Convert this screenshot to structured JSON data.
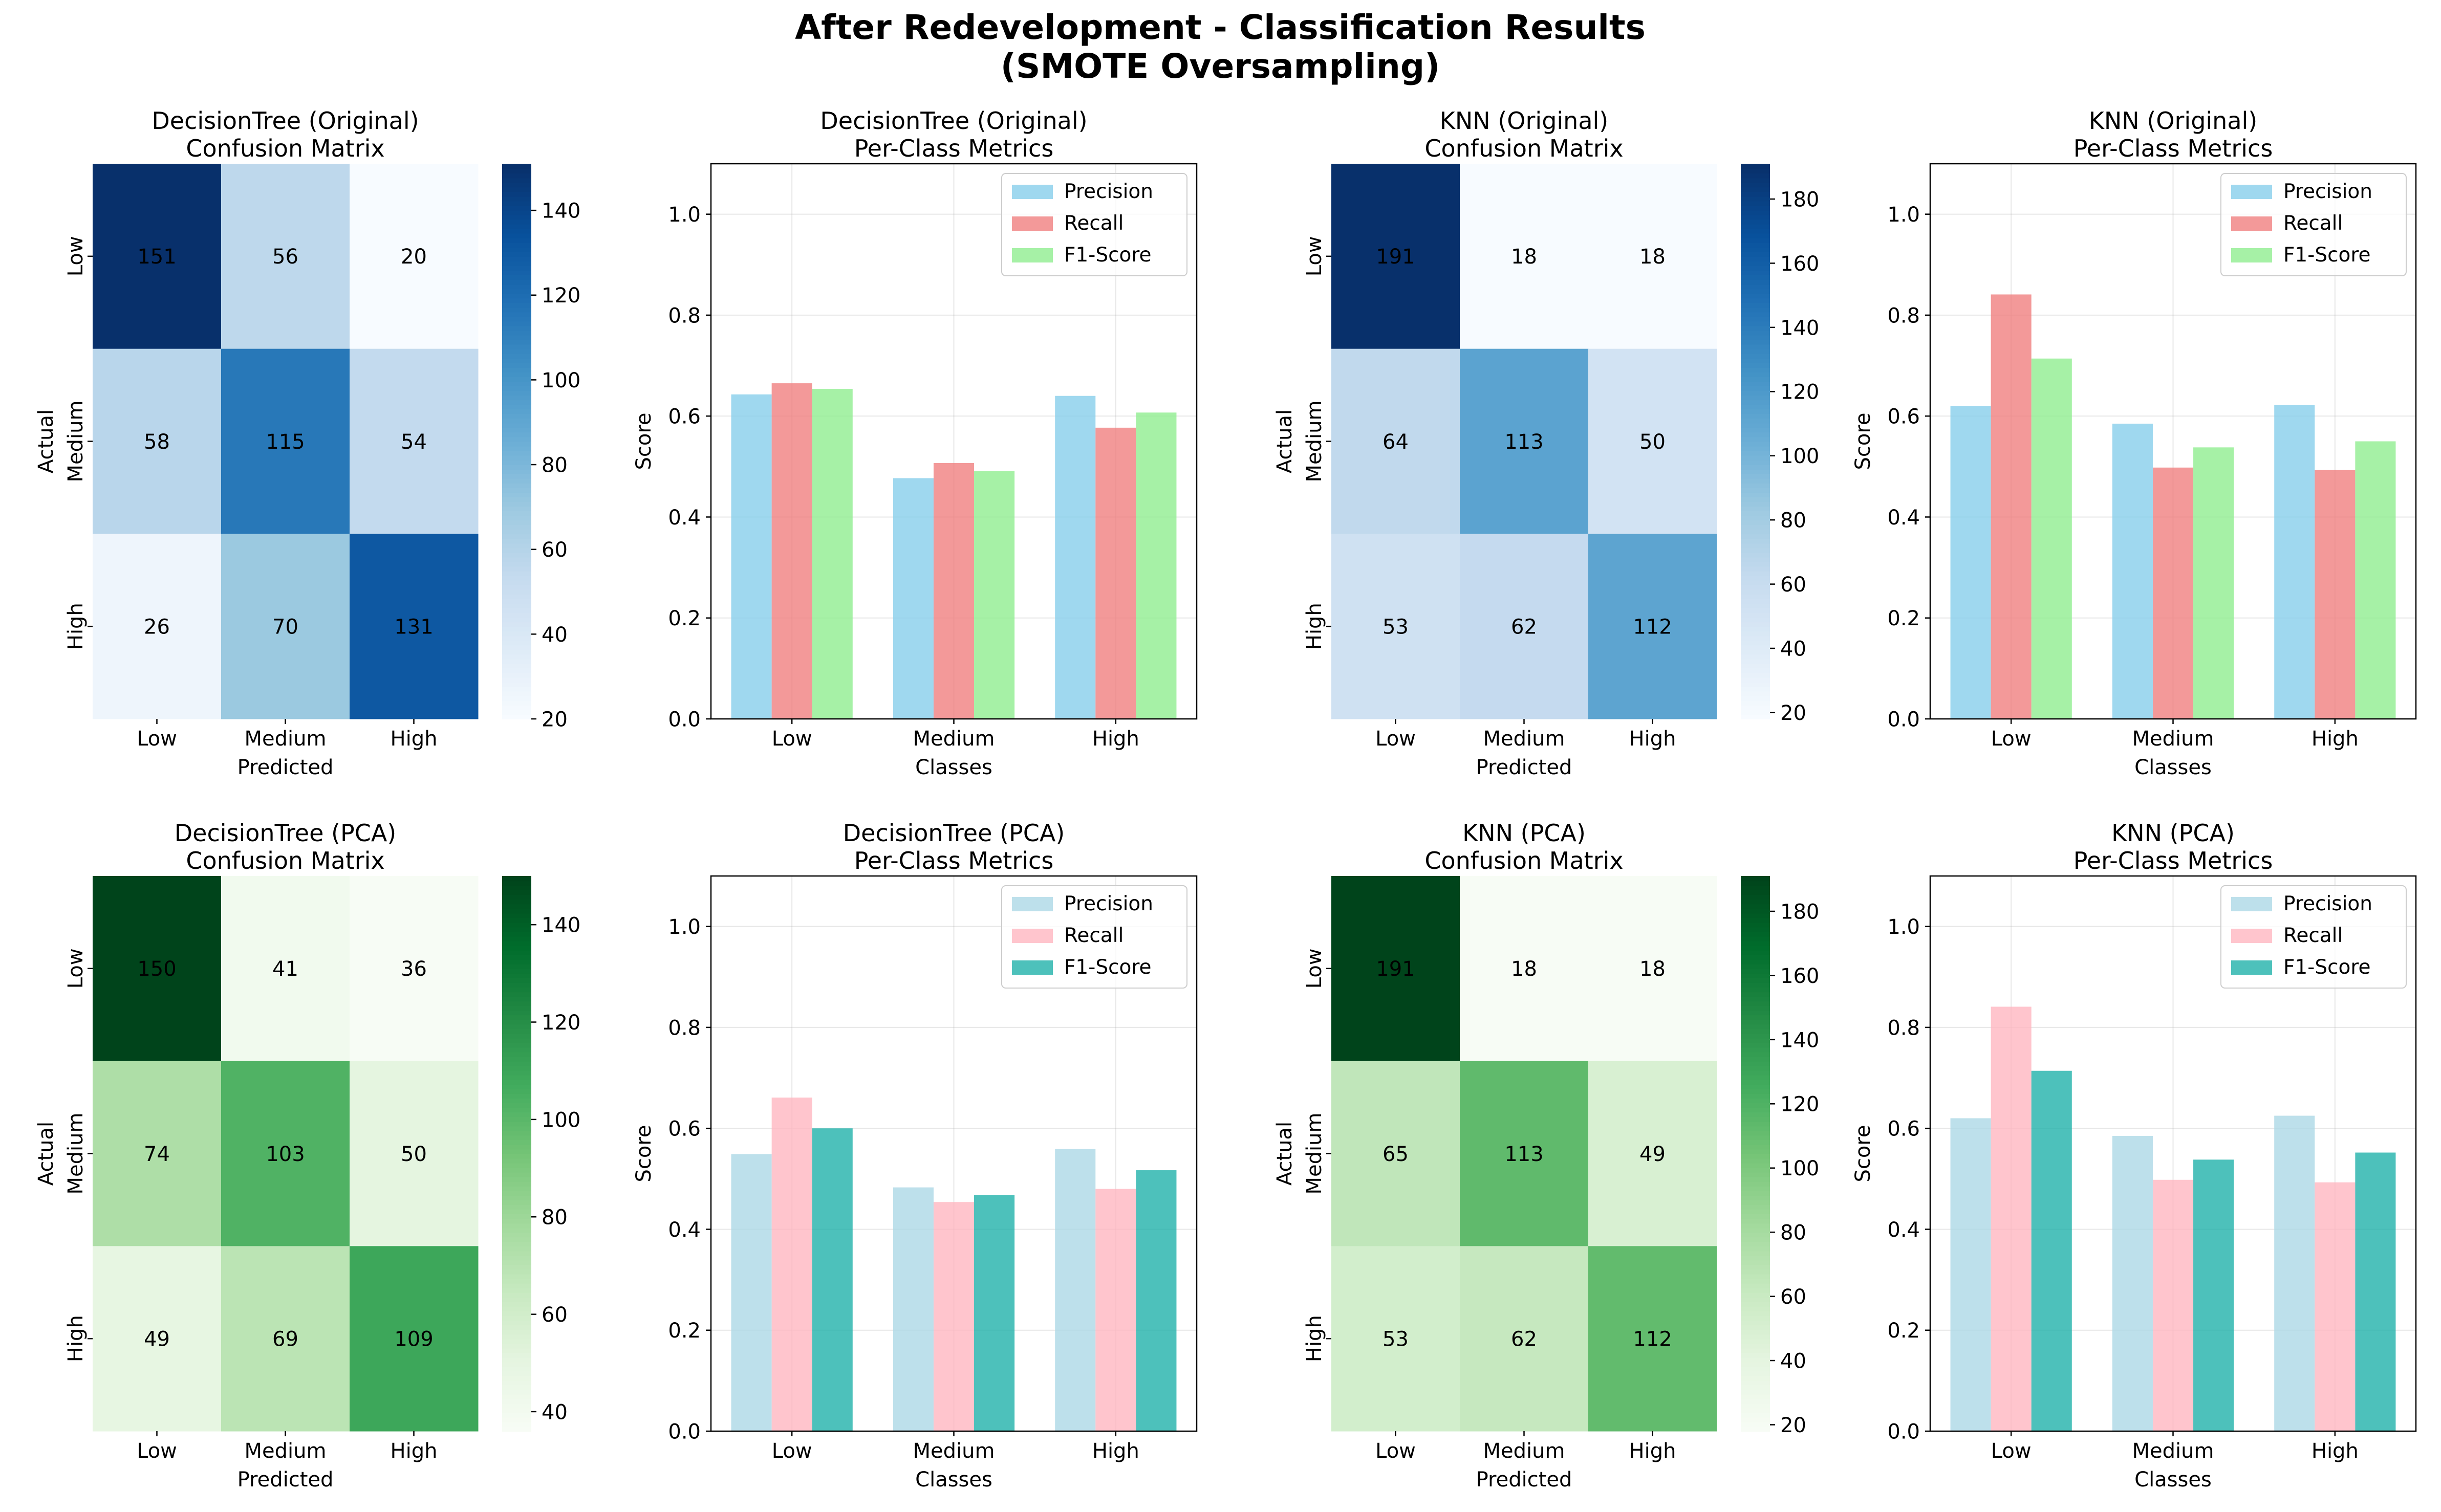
{
  "figure": {
    "title_line1": "After Redevelopment - Classification Results",
    "title_line2": "(SMOTE Oversampling)"
  },
  "chart_data": [
    {
      "type": "heatmap",
      "title": "DecisionTree (Original)",
      "subtitle": "Confusion Matrix",
      "xlabel": "Predicted",
      "ylabel": "Actual",
      "x_categories": [
        "Low",
        "Medium",
        "High"
      ],
      "y_categories": [
        "Low",
        "Medium",
        "High"
      ],
      "matrix": [
        [
          151,
          56,
          20
        ],
        [
          58,
          115,
          54
        ],
        [
          26,
          70,
          131
        ]
      ],
      "colormap": "Blues",
      "color_range": [
        20,
        151
      ],
      "colorbar_ticks": [
        20,
        40,
        60,
        80,
        100,
        120,
        140
      ]
    },
    {
      "type": "bar",
      "title": "DecisionTree (Original)",
      "subtitle": "Per-Class Metrics",
      "xlabel": "Classes",
      "ylabel": "Score",
      "categories": [
        "Low",
        "Medium",
        "High"
      ],
      "ylim": [
        0,
        1.1
      ],
      "yticks": [
        "0.0",
        "0.2",
        "0.4",
        "0.6",
        "0.8",
        "1.0"
      ],
      "grid": true,
      "legend_position": "top-right",
      "series": [
        {
          "name": "Precision",
          "values": [
            0.643,
            0.477,
            0.64
          ],
          "color": "#87ceeb"
        },
        {
          "name": "Recall",
          "values": [
            0.665,
            0.507,
            0.577
          ],
          "color": "#f08080"
        },
        {
          "name": "F1-Score",
          "values": [
            0.654,
            0.491,
            0.607
          ],
          "color": "#90ee90"
        }
      ]
    },
    {
      "type": "heatmap",
      "title": "KNN (Original)",
      "subtitle": "Confusion Matrix",
      "xlabel": "Predicted",
      "ylabel": "Actual",
      "x_categories": [
        "Low",
        "Medium",
        "High"
      ],
      "y_categories": [
        "Low",
        "Medium",
        "High"
      ],
      "matrix": [
        [
          191,
          18,
          18
        ],
        [
          64,
          113,
          50
        ],
        [
          53,
          62,
          112
        ]
      ],
      "colormap": "Blues",
      "color_range": [
        18,
        191
      ],
      "colorbar_ticks": [
        20,
        40,
        60,
        80,
        100,
        120,
        140,
        160,
        180
      ]
    },
    {
      "type": "bar",
      "title": "KNN (Original)",
      "subtitle": "Per-Class Metrics",
      "xlabel": "Classes",
      "ylabel": "Score",
      "categories": [
        "Low",
        "Medium",
        "High"
      ],
      "ylim": [
        0,
        1.1
      ],
      "yticks": [
        "0.0",
        "0.2",
        "0.4",
        "0.6",
        "0.8",
        "1.0"
      ],
      "grid": true,
      "legend_position": "top-right",
      "series": [
        {
          "name": "Precision",
          "values": [
            0.62,
            0.585,
            0.622
          ],
          "color": "#87ceeb"
        },
        {
          "name": "Recall",
          "values": [
            0.841,
            0.498,
            0.493
          ],
          "color": "#f08080"
        },
        {
          "name": "F1-Score",
          "values": [
            0.714,
            0.538,
            0.55
          ],
          "color": "#90ee90"
        }
      ]
    },
    {
      "type": "heatmap",
      "title": "DecisionTree (PCA)",
      "subtitle": "Confusion Matrix",
      "xlabel": "Predicted",
      "ylabel": "Actual",
      "x_categories": [
        "Low",
        "Medium",
        "High"
      ],
      "y_categories": [
        "Low",
        "Medium",
        "High"
      ],
      "matrix": [
        [
          150,
          41,
          36
        ],
        [
          74,
          103,
          50
        ],
        [
          49,
          69,
          109
        ]
      ],
      "colormap": "Greens",
      "color_range": [
        36,
        150
      ],
      "colorbar_ticks": [
        40,
        60,
        80,
        100,
        120,
        140
      ]
    },
    {
      "type": "bar",
      "title": "DecisionTree (PCA)",
      "subtitle": "Per-Class Metrics",
      "xlabel": "Classes",
      "ylabel": "Score",
      "categories": [
        "Low",
        "Medium",
        "High"
      ],
      "ylim": [
        0,
        1.1
      ],
      "yticks": [
        "0.0",
        "0.2",
        "0.4",
        "0.6",
        "0.8",
        "1.0"
      ],
      "grid": true,
      "legend_position": "top-right",
      "series": [
        {
          "name": "Precision",
          "values": [
            0.549,
            0.483,
            0.559
          ],
          "color": "#add8e6"
        },
        {
          "name": "Recall",
          "values": [
            0.661,
            0.454,
            0.48
          ],
          "color": "#ffb6c1"
        },
        {
          "name": "F1-Score",
          "values": [
            0.6,
            0.468,
            0.517
          ],
          "color": "#20b2aa"
        }
      ]
    },
    {
      "type": "heatmap",
      "title": "KNN (PCA)",
      "subtitle": "Confusion Matrix",
      "xlabel": "Predicted",
      "ylabel": "Actual",
      "x_categories": [
        "Low",
        "Medium",
        "High"
      ],
      "y_categories": [
        "Low",
        "Medium",
        "High"
      ],
      "matrix": [
        [
          191,
          18,
          18
        ],
        [
          65,
          113,
          49
        ],
        [
          53,
          62,
          112
        ]
      ],
      "colormap": "Greens",
      "color_range": [
        18,
        191
      ],
      "colorbar_ticks": [
        20,
        40,
        60,
        80,
        100,
        120,
        140,
        160,
        180
      ]
    },
    {
      "type": "bar",
      "title": "KNN (PCA)",
      "subtitle": "Per-Class Metrics",
      "xlabel": "Classes",
      "ylabel": "Score",
      "categories": [
        "Low",
        "Medium",
        "High"
      ],
      "ylim": [
        0,
        1.1
      ],
      "yticks": [
        "0.0",
        "0.2",
        "0.4",
        "0.6",
        "0.8",
        "1.0"
      ],
      "grid": true,
      "legend_position": "top-right",
      "series": [
        {
          "name": "Precision",
          "values": [
            0.62,
            0.585,
            0.625
          ],
          "color": "#add8e6"
        },
        {
          "name": "Recall",
          "values": [
            0.841,
            0.498,
            0.493
          ],
          "color": "#ffb6c1"
        },
        {
          "name": "F1-Score",
          "values": [
            0.714,
            0.538,
            0.552
          ],
          "color": "#20b2aa"
        }
      ]
    }
  ]
}
